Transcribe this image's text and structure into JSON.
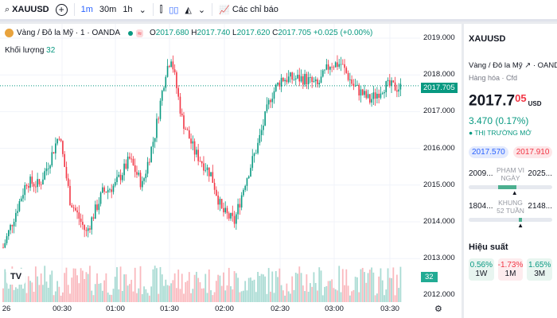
{
  "toolbar": {
    "symbol": "XAUUSD",
    "intervals": [
      "1m",
      "30m",
      "1h"
    ],
    "indicators": "Các chỉ báo"
  },
  "legend": {
    "name": "Vàng / Đô la Mỹ · 1 · OANDA",
    "o_label": "O",
    "o": "2017.680",
    "h_label": "H",
    "h": "2017.740",
    "l_label": "L",
    "l": "2017.620",
    "c_label": "C",
    "c": "2017.705",
    "change": "+0.025 (+0.00%)",
    "volume_label": "Khối lượng",
    "volume": "32"
  },
  "axis": {
    "prices": [
      "2019.000",
      "2018.000",
      "2017.000",
      "2016.000",
      "2015.000",
      "2014.000",
      "2013.000",
      "2012.000"
    ],
    "last_price": "2017.705",
    "last_volume": "32",
    "times": [
      "26",
      "00:30",
      "01:00",
      "01:30",
      "02:00",
      "02:30",
      "03:00",
      "03:30"
    ]
  },
  "side": {
    "symbol": "XAUUSD",
    "desc": "Vàng / Đô la Mỹ",
    "exchange": "OANDA",
    "category": "Hàng hóa",
    "type": "Cfd",
    "price_main": "2017.7",
    "price_last": "05",
    "currency": "USD",
    "change": "3.470 (0.17%)",
    "market_status": "THỊ TRƯỜNG MỞ",
    "bid": "2017.570",
    "ask": "2017.910",
    "day_low": "2009...",
    "day_label": "PHẠM VI NGÀY",
    "day_high": "2025...",
    "day_position": 0.55,
    "wk_low": "1804...",
    "wk_label": "KHUNG 52 TUẦN",
    "wk_high": "2148...",
    "wk_position": 0.62,
    "perf_title": "Hiệu suất",
    "perf": [
      {
        "value": "0.56%",
        "period": "1W"
      },
      {
        "value": "-1.73%",
        "period": "1M"
      },
      {
        "value": "1.65%",
        "period": "3M"
      }
    ]
  },
  "chart_data": {
    "type": "candlestick",
    "ylim": [
      2012,
      2019
    ],
    "waypoints": [
      [
        0,
        2013.3
      ],
      [
        13,
        2015.1
      ],
      [
        20,
        2015.0
      ],
      [
        26,
        2015.7
      ],
      [
        31,
        2016.4
      ],
      [
        37,
        2014.6
      ],
      [
        46,
        2013.7
      ],
      [
        55,
        2014.8
      ],
      [
        62,
        2015.0
      ],
      [
        70,
        2015.7
      ],
      [
        77,
        2015.0
      ],
      [
        84,
        2016.4
      ],
      [
        90,
        2018.1
      ],
      [
        93,
        2018.5
      ],
      [
        99,
        2016.8
      ],
      [
        106,
        2015.9
      ],
      [
        115,
        2015.3
      ],
      [
        121,
        2014.3
      ],
      [
        128,
        2014.0
      ],
      [
        134,
        2015.1
      ],
      [
        141,
        2016.1
      ],
      [
        148,
        2017.4
      ],
      [
        154,
        2017.9
      ],
      [
        167,
        2017.9
      ],
      [
        174,
        2017.7
      ],
      [
        181,
        2018.3
      ],
      [
        187,
        2018.3
      ],
      [
        194,
        2017.7
      ],
      [
        203,
        2017.3
      ],
      [
        211,
        2017.7
      ],
      [
        220,
        2017.65
      ]
    ]
  }
}
